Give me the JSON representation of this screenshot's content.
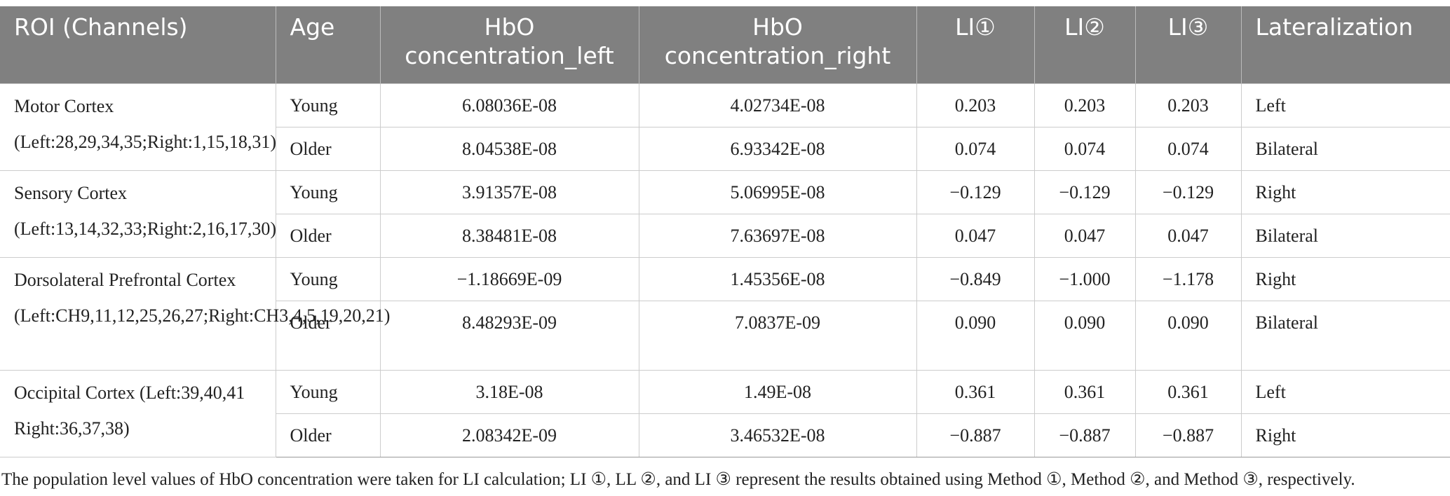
{
  "table": {
    "header": [
      "ROI (Channels)",
      "Age",
      "HbO concentration_left",
      "HbO concentration_right",
      "LI①",
      "LI②",
      "LI③",
      "Lateralization"
    ],
    "groups": [
      {
        "roi": "Motor Cortex (Left:28,29,34,35;Right:1,15,18,31)",
        "rows": [
          [
            "Young",
            "6.08036E-08",
            "4.02734E-08",
            "0.203",
            "0.203",
            "0.203",
            "Left"
          ],
          [
            "Older",
            "8.04538E-08",
            "6.93342E-08",
            "0.074",
            "0.074",
            "0.074",
            "Bilateral"
          ]
        ]
      },
      {
        "roi": "Sensory Cortex (Left:13,14,32,33;Right:2,16,17,30)",
        "rows": [
          [
            "Young",
            "3.91357E-08",
            "5.06995E-08",
            "−0.129",
            "−0.129",
            "−0.129",
            "Right"
          ],
          [
            "Older",
            "8.38481E-08",
            "7.63697E-08",
            "0.047",
            "0.047",
            "0.047",
            "Bilateral"
          ]
        ]
      },
      {
        "roi": "Dorsolateral Prefrontal Cortex (Left:CH9,11,12,25,26,27;Right:CH3,4,5,19,20,21)",
        "rows": [
          [
            "Young",
            "−1.18669E-09",
            "1.45356E-08",
            "−0.849",
            "−1.000",
            "−1.178",
            "Right"
          ],
          [
            "Older",
            "8.48293E-09",
            "7.0837E-09",
            "0.090",
            "0.090",
            "0.090",
            "Bilateral"
          ]
        ]
      },
      {
        "roi": "Occipital Cortex (Left:39,40,41 Right:36,37,38)",
        "rows": [
          [
            "Young",
            "3.18E-08",
            "1.49E-08",
            "0.361",
            "0.361",
            "0.361",
            "Left"
          ],
          [
            "Older",
            "2.08342E-09",
            "3.46532E-08",
            "−0.887",
            "−0.887",
            "−0.887",
            "Right"
          ]
        ]
      }
    ]
  },
  "footnote": "The population level values of HbO concentration were taken for LI calculation; LI ①, LL ②, and LI ③ represent the results obtained using Method ①, Method ②, and Method ③, respectively."
}
